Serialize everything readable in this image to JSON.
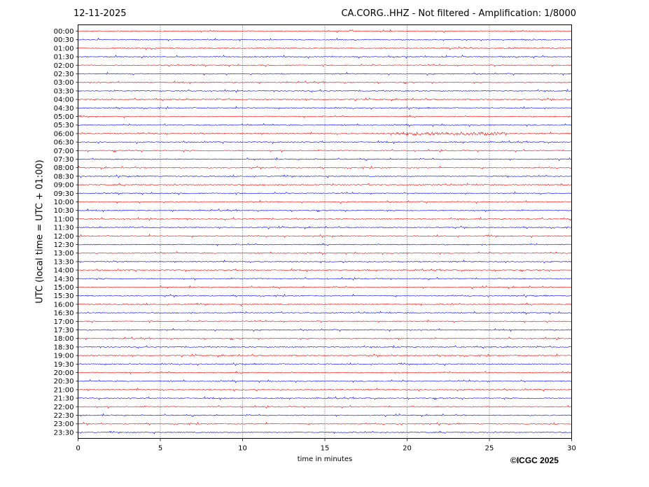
{
  "header": {
    "date": "12-11-2025",
    "title": "CA.CORG..HHZ - Not filtered - Amplification: 1/8000"
  },
  "footer": {
    "copyright": "©ICGC 2025"
  },
  "chart_data": {
    "type": "line",
    "title": "CA.CORG..HHZ - Not filtered - Amplification: 1/8000",
    "xlabel": "time in minutes",
    "ylabel": "UTC (local time = UTC + 01:00)",
    "xlim": [
      0,
      30
    ],
    "xticks": [
      0,
      5,
      10,
      15,
      20,
      25,
      30
    ],
    "grid": "vertical dotted at 5-minute ticks",
    "row_labels": [
      "00:00",
      "00:30",
      "01:00",
      "01:30",
      "02:00",
      "02:30",
      "03:00",
      "03:30",
      "04:00",
      "04:30",
      "05:00",
      "05:30",
      "06:00",
      "06:30",
      "07:00",
      "07:30",
      "08:00",
      "08:30",
      "09:00",
      "09:30",
      "10:00",
      "10:30",
      "11:00",
      "11:30",
      "12:00",
      "12:30",
      "13:00",
      "13:30",
      "14:00",
      "14:30",
      "15:00",
      "15:30",
      "16:00",
      "16:30",
      "17:00",
      "17:30",
      "18:00",
      "18:30",
      "19:00",
      "19:30",
      "20:00",
      "20:30",
      "21:00",
      "21:30",
      "22:00",
      "22:30",
      "23:00",
      "23:30"
    ],
    "trace_colors": [
      "#ff0000",
      "#0000ff"
    ],
    "notable_event": {
      "row": "06:00",
      "x_range_minutes": [
        19,
        26
      ]
    }
  }
}
